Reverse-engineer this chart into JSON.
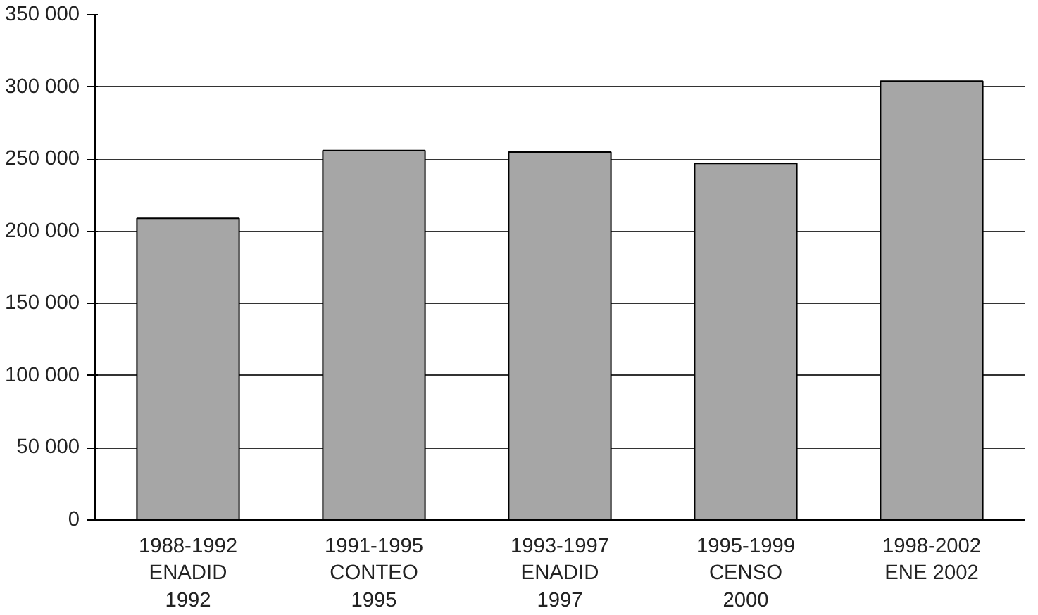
{
  "chart_data": {
    "type": "bar",
    "categories": [
      "1988-1992\nENADID\n1992",
      "1991-1995\nCONTEO\n1995",
      "1993-1997\nENADID\n1997",
      "1995-1999\nCENSO\n2000",
      "1998-2002\nENE 2002"
    ],
    "values": [
      209000,
      256000,
      255000,
      247000,
      304000
    ],
    "color": "#a6a6a6",
    "ylim": [
      0,
      350000
    ],
    "yticks": [
      {
        "value": 0,
        "label": "0"
      },
      {
        "value": 50000,
        "label": "50 000"
      },
      {
        "value": 100000,
        "label": "100 000"
      },
      {
        "value": 150000,
        "label": "150 000"
      },
      {
        "value": 200000,
        "label": "200 000"
      },
      {
        "value": 250000,
        "label": "250 000"
      },
      {
        "value": 300000,
        "label": "300 000"
      },
      {
        "value": 350000,
        "label": "350 000"
      }
    ],
    "grid": "y"
  }
}
